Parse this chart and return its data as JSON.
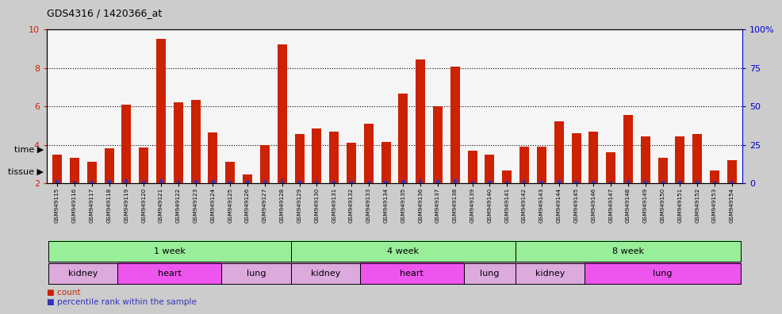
{
  "title": "GDS4316 / 1420366_at",
  "samples": [
    "GSM949115",
    "GSM949116",
    "GSM949117",
    "GSM949118",
    "GSM949119",
    "GSM949120",
    "GSM949121",
    "GSM949122",
    "GSM949123",
    "GSM949124",
    "GSM949125",
    "GSM949126",
    "GSM949127",
    "GSM949128",
    "GSM949129",
    "GSM949130",
    "GSM949131",
    "GSM949132",
    "GSM949133",
    "GSM949134",
    "GSM949135",
    "GSM949136",
    "GSM949137",
    "GSM949138",
    "GSM949139",
    "GSM949140",
    "GSM949141",
    "GSM949142",
    "GSM949143",
    "GSM949144",
    "GSM949145",
    "GSM949146",
    "GSM949147",
    "GSM949148",
    "GSM949149",
    "GSM949150",
    "GSM949151",
    "GSM949152",
    "GSM949153",
    "GSM949154"
  ],
  "count_values": [
    3.5,
    3.3,
    3.1,
    3.8,
    6.1,
    3.85,
    9.5,
    6.2,
    6.35,
    4.65,
    3.1,
    2.45,
    4.0,
    9.2,
    4.55,
    4.85,
    4.7,
    4.1,
    5.1,
    4.15,
    6.65,
    8.45,
    6.0,
    8.05,
    3.7,
    3.5,
    2.65,
    3.9,
    3.9,
    5.2,
    4.6,
    4.7,
    3.6,
    5.55,
    4.45,
    3.3,
    4.45,
    4.55,
    2.65,
    3.2
  ],
  "percentile_values": [
    0.18,
    0.12,
    0.12,
    0.18,
    0.22,
    0.12,
    0.22,
    0.18,
    0.18,
    0.18,
    0.12,
    0.12,
    0.18,
    0.22,
    0.12,
    0.12,
    0.12,
    0.12,
    0.12,
    0.12,
    0.18,
    0.22,
    0.18,
    0.22,
    0.12,
    0.12,
    0.12,
    0.18,
    0.12,
    0.18,
    0.12,
    0.12,
    0.12,
    0.18,
    0.12,
    0.12,
    0.12,
    0.12,
    0.12,
    0.12
  ],
  "ylim_left": [
    2,
    10
  ],
  "ylim_right": [
    0,
    100
  ],
  "yticks_left": [
    2,
    4,
    6,
    8,
    10
  ],
  "yticks_right": [
    0,
    25,
    50,
    75,
    100
  ],
  "ytick_labels_right": [
    "0",
    "25",
    "50",
    "75",
    "100%"
  ],
  "bar_color": "#cc2200",
  "percentile_color": "#3333bb",
  "bg_color": "#cccccc",
  "plot_bg_color": "#f5f5f5",
  "time_groups": [
    {
      "label": "1 week",
      "start": 0,
      "end": 13
    },
    {
      "label": "4 week",
      "start": 14,
      "end": 26
    },
    {
      "label": "8 week",
      "start": 27,
      "end": 39
    }
  ],
  "tissue_groups": [
    {
      "label": "kidney",
      "start": 0,
      "end": 3,
      "color": "#ddaadd"
    },
    {
      "label": "heart",
      "start": 4,
      "end": 9,
      "color": "#ee55ee"
    },
    {
      "label": "lung",
      "start": 10,
      "end": 13,
      "color": "#ddaadd"
    },
    {
      "label": "kidney",
      "start": 14,
      "end": 17,
      "color": "#ddaadd"
    },
    {
      "label": "heart",
      "start": 18,
      "end": 23,
      "color": "#ee55ee"
    },
    {
      "label": "lung",
      "start": 24,
      "end": 26,
      "color": "#ddaadd"
    },
    {
      "label": "kidney",
      "start": 27,
      "end": 30,
      "color": "#ddaadd"
    },
    {
      "label": "lung",
      "start": 31,
      "end": 39,
      "color": "#ee55ee"
    }
  ],
  "time_color": "#99ee99",
  "xlabel_color": "#cc2200",
  "ylabel_right_color": "#0000cc"
}
